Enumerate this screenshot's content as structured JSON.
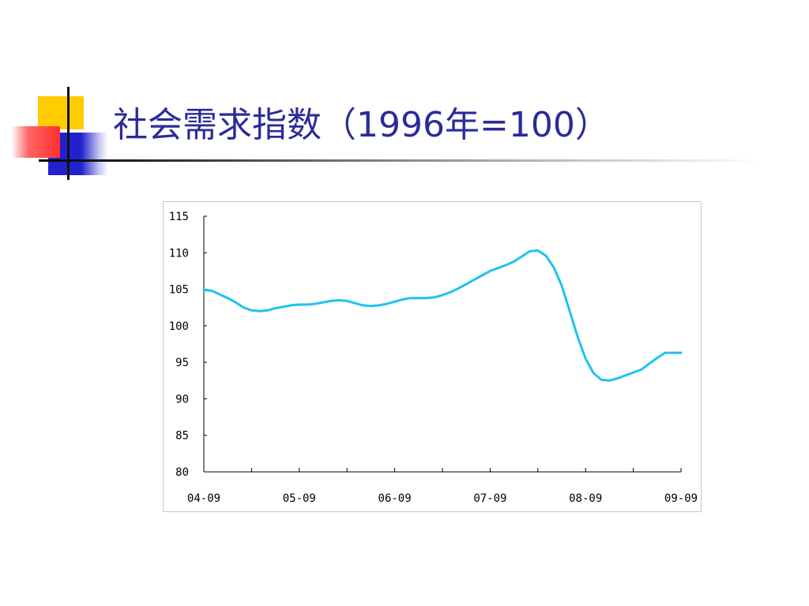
{
  "slide": {
    "title": "社会需求指数（1996年=100）"
  },
  "colors": {
    "title": "#2b2b9a",
    "series_line": "#1ec3f0",
    "decor_yellow": "#ffcc00",
    "decor_blue": "#2222cc",
    "decor_red": "#ff3030"
  },
  "chart_data": {
    "type": "line",
    "title": "",
    "xlabel": "",
    "ylabel": "",
    "ylim": [
      80,
      115
    ],
    "y_ticks": [
      115,
      110,
      105,
      100,
      95,
      90,
      85,
      80
    ],
    "x_ticks": [
      "04-09",
      "05-09",
      "06-09",
      "07-09",
      "08-09",
      "09-09"
    ],
    "grid": false,
    "legend": "none",
    "series": [
      {
        "x": [
          "04-09",
          "04-10",
          "04-11",
          "04-12",
          "05-01",
          "05-02",
          "05-03",
          "05-04",
          "05-05",
          "05-06",
          "05-07",
          "05-08",
          "05-09",
          "05-10",
          "05-11",
          "05-12",
          "06-01",
          "06-02",
          "06-03",
          "06-04",
          "06-05",
          "06-06",
          "06-07",
          "06-08",
          "06-09",
          "06-10",
          "06-11",
          "06-12",
          "07-01",
          "07-02",
          "07-03",
          "07-04",
          "07-05",
          "07-06",
          "07-07",
          "07-08",
          "07-09",
          "07-10",
          "07-11",
          "07-12",
          "08-01",
          "08-02",
          "08-03",
          "08-04",
          "08-05",
          "08-06",
          "08-07",
          "08-08",
          "08-09",
          "08-10",
          "08-11",
          "08-12",
          "09-01",
          "09-02",
          "09-03",
          "09-04",
          "09-05",
          "09-06",
          "09-07",
          "09-08",
          "09-09"
        ],
        "values": [
          104.9,
          104.8,
          104.3,
          103.8,
          103.2,
          102.5,
          102.1,
          102.0,
          102.1,
          102.4,
          102.6,
          102.8,
          102.9,
          102.9,
          103.0,
          103.2,
          103.4,
          103.5,
          103.4,
          103.1,
          102.8,
          102.7,
          102.8,
          103.0,
          103.3,
          103.6,
          103.8,
          103.8,
          103.8,
          103.9,
          104.2,
          104.6,
          105.1,
          105.7,
          106.3,
          106.9,
          107.5,
          107.9,
          108.3,
          108.8,
          109.5,
          110.2,
          110.3,
          109.6,
          108.0,
          105.5,
          102.0,
          98.5,
          95.5,
          93.5,
          92.6,
          92.5,
          92.8,
          93.2,
          93.6,
          94.0,
          94.8,
          95.6,
          96.3,
          96.3,
          96.3
        ]
      }
    ]
  }
}
